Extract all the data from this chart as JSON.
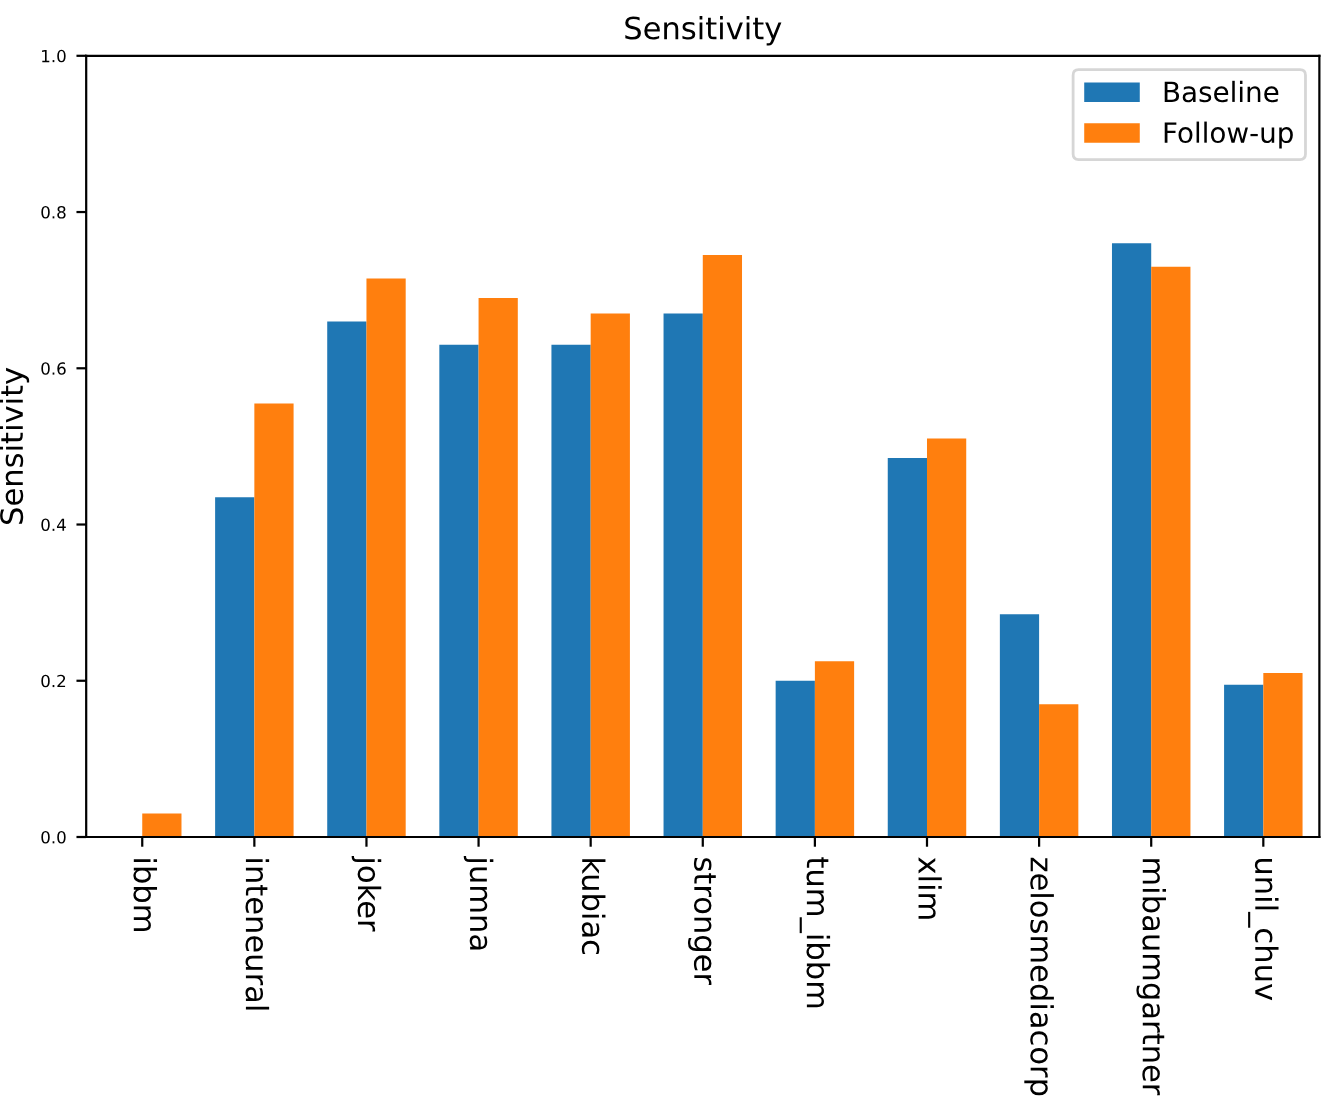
{
  "chart_data": {
    "type": "bar",
    "title": "Sensitivity",
    "ylabel": "Sensitivity",
    "categories": [
      "ibbm",
      "inteneural",
      "joker",
      "jumna",
      "kubiac",
      "stronger",
      "tum_ibbm",
      "xlim",
      "zelosmediacorp",
      "mibaumgartner",
      "unil_chuv"
    ],
    "series": [
      {
        "name": "Baseline",
        "color": "#1f77b4",
        "values": [
          0,
          0.435,
          0.66,
          0.63,
          0.63,
          0.67,
          0.2,
          0.485,
          0.285,
          0.76,
          0.195
        ]
      },
      {
        "name": "Follow-up",
        "color": "#ff7f0e",
        "values": [
          0.03,
          0.555,
          0.715,
          0.69,
          0.67,
          0.745,
          0.225,
          0.51,
          0.17,
          0.73,
          0.21
        ]
      }
    ],
    "ylim": [
      0,
      1.0
    ],
    "yticks": [
      {
        "value": 0,
        "label": "0.0"
      },
      {
        "value": 0.2,
        "label": "0.2"
      },
      {
        "value": 0.4,
        "label": "0.4"
      },
      {
        "value": 0.6,
        "label": "0.6"
      },
      {
        "value": 0.8,
        "label": "0.8"
      },
      {
        "value": 1.0,
        "label": "1.0"
      }
    ],
    "grid": false,
    "legend": "top right"
  }
}
